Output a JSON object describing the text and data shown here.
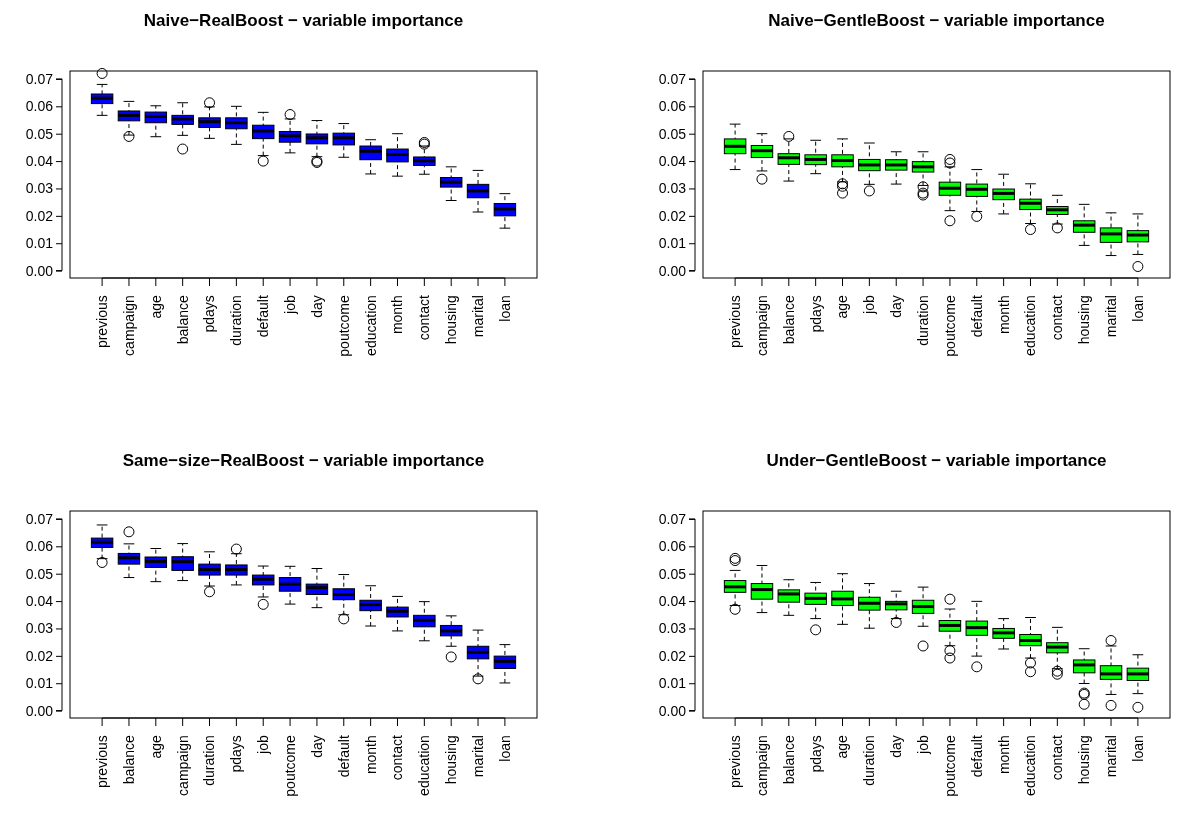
{
  "chart_data": [
    {
      "type": "box",
      "title": "Naive−RealBoost − variable importance",
      "color": "#0000ff",
      "ylim": [
        -0.0027,
        0.0729
      ],
      "yticks": [
        {
          "value": 0,
          "label": "0.00"
        },
        {
          "value": 0.01,
          "label": "0.01"
        },
        {
          "value": 0.02,
          "label": "0.02"
        },
        {
          "value": 0.03,
          "label": "0.03"
        },
        {
          "value": 0.04,
          "label": "0.04"
        },
        {
          "value": 0.05,
          "label": "0.05"
        },
        {
          "value": 0.06,
          "label": "0.06"
        },
        {
          "value": 0.07,
          "label": "0.07"
        }
      ],
      "categories": [
        "previous",
        "campaign",
        "age",
        "balance",
        "pdays",
        "duration",
        "default",
        "job",
        "day",
        "poutcome",
        "education",
        "month",
        "contact",
        "housing",
        "marital",
        "loan"
      ],
      "boxes": [
        {
          "low": 0.0567,
          "q1": 0.061,
          "median": 0.063,
          "q3": 0.0645,
          "high": 0.068,
          "outliers": [
            0.072
          ]
        },
        {
          "low": 0.0495,
          "q1": 0.0547,
          "median": 0.0567,
          "q3": 0.0583,
          "high": 0.0618,
          "outliers": [
            0.049
          ]
        },
        {
          "low": 0.0489,
          "q1": 0.054,
          "median": 0.0563,
          "q3": 0.0579,
          "high": 0.0602
        },
        {
          "low": 0.0494,
          "q1": 0.0534,
          "median": 0.0554,
          "q3": 0.0567,
          "high": 0.0613,
          "outliers": [
            0.0444
          ]
        },
        {
          "low": 0.0483,
          "q1": 0.0523,
          "median": 0.0544,
          "q3": 0.0558,
          "high": 0.0598,
          "outliers": [
            0.0613
          ]
        },
        {
          "low": 0.0461,
          "q1": 0.0518,
          "median": 0.054,
          "q3": 0.0558,
          "high": 0.06
        },
        {
          "low": 0.042,
          "q1": 0.0482,
          "median": 0.051,
          "q3": 0.0531,
          "high": 0.0578,
          "outliers": [
            0.04
          ]
        },
        {
          "low": 0.043,
          "q1": 0.0469,
          "median": 0.0492,
          "q3": 0.0508,
          "high": 0.0554,
          "outliers": [
            0.057
          ]
        },
        {
          "low": 0.0416,
          "q1": 0.0463,
          "median": 0.0485,
          "q3": 0.0499,
          "high": 0.0548,
          "outliers": [
            0.04,
            0.0395
          ]
        },
        {
          "low": 0.0414,
          "q1": 0.0459,
          "median": 0.0485,
          "q3": 0.0502,
          "high": 0.0537
        },
        {
          "low": 0.0353,
          "q1": 0.0405,
          "median": 0.0436,
          "q3": 0.0455,
          "high": 0.0478
        },
        {
          "low": 0.0345,
          "q1": 0.0397,
          "median": 0.0424,
          "q3": 0.0444,
          "high": 0.05
        },
        {
          "low": 0.0352,
          "q1": 0.0384,
          "median": 0.0401,
          "q3": 0.0415,
          "high": 0.0455,
          "outliers": [
            0.0468,
            0.0462
          ]
        },
        {
          "low": 0.0256,
          "q1": 0.0305,
          "median": 0.0323,
          "q3": 0.034,
          "high": 0.0379
        },
        {
          "low": 0.0214,
          "q1": 0.0266,
          "median": 0.0291,
          "q3": 0.0315,
          "high": 0.0366
        },
        {
          "low": 0.0155,
          "q1": 0.02,
          "median": 0.0225,
          "q3": 0.0245,
          "high": 0.0281
        }
      ]
    },
    {
      "type": "box",
      "title": "Naive−GentleBoost − variable importance",
      "color": "#00ff00",
      "ylim": [
        -0.0027,
        0.0729
      ],
      "yticks": [
        {
          "value": 0,
          "label": "0.00"
        },
        {
          "value": 0.01,
          "label": "0.01"
        },
        {
          "value": 0.02,
          "label": "0.02"
        },
        {
          "value": 0.03,
          "label": "0.03"
        },
        {
          "value": 0.04,
          "label": "0.04"
        },
        {
          "value": 0.05,
          "label": "0.05"
        },
        {
          "value": 0.06,
          "label": "0.06"
        },
        {
          "value": 0.07,
          "label": "0.07"
        }
      ],
      "categories": [
        "previous",
        "campaign",
        "balance",
        "pdays",
        "age",
        "job",
        "day",
        "duration",
        "poutcome",
        "default",
        "month",
        "education",
        "contact",
        "housing",
        "marital",
        "loan"
      ],
      "boxes": [
        {
          "low": 0.0369,
          "q1": 0.0427,
          "median": 0.0454,
          "q3": 0.0481,
          "high": 0.0535
        },
        {
          "low": 0.0364,
          "q1": 0.0413,
          "median": 0.0438,
          "q3": 0.0457,
          "high": 0.05,
          "outliers": [
            0.0334
          ]
        },
        {
          "low": 0.0327,
          "q1": 0.0388,
          "median": 0.0412,
          "q3": 0.0427,
          "high": 0.0481,
          "outliers": [
            0.049
          ]
        },
        {
          "low": 0.0354,
          "q1": 0.0387,
          "median": 0.0406,
          "q3": 0.0423,
          "high": 0.0476
        },
        {
          "low": 0.0324,
          "q1": 0.0379,
          "median": 0.0402,
          "q3": 0.0423,
          "high": 0.0481,
          "outliers": [
            0.0317,
            0.0308,
            0.0283
          ]
        },
        {
          "low": 0.0315,
          "q1": 0.0365,
          "median": 0.0386,
          "q3": 0.0406,
          "high": 0.0466,
          "outliers": [
            0.0291
          ]
        },
        {
          "low": 0.0316,
          "q1": 0.0367,
          "median": 0.0386,
          "q3": 0.0405,
          "high": 0.0434
        },
        {
          "low": 0.0311,
          "q1": 0.036,
          "median": 0.0379,
          "q3": 0.0398,
          "high": 0.0434,
          "outliers": [
            0.0306,
            0.0283,
            0.0276
          ]
        },
        {
          "low": 0.0219,
          "q1": 0.0275,
          "median": 0.0301,
          "q3": 0.0323,
          "high": 0.0379,
          "outliers": [
            0.0406,
            0.0393,
            0.0182
          ]
        },
        {
          "low": 0.0216,
          "q1": 0.0271,
          "median": 0.0297,
          "q3": 0.0316,
          "high": 0.0369,
          "outliers": [
            0.0198
          ]
        },
        {
          "low": 0.0207,
          "q1": 0.0259,
          "median": 0.0282,
          "q3": 0.0298,
          "high": 0.0352
        },
        {
          "low": 0.0172,
          "q1": 0.0223,
          "median": 0.0246,
          "q3": 0.0261,
          "high": 0.0317,
          "outliers": [
            0.015
          ]
        },
        {
          "low": 0.017,
          "q1": 0.0205,
          "median": 0.0222,
          "q3": 0.0234,
          "high": 0.0275,
          "outliers": [
            0.0156
          ]
        },
        {
          "low": 0.0092,
          "q1": 0.014,
          "median": 0.0166,
          "q3": 0.0182,
          "high": 0.0242
        },
        {
          "low": 0.0055,
          "q1": 0.0103,
          "median": 0.0134,
          "q3": 0.0156,
          "high": 0.0211
        },
        {
          "low": 0.0059,
          "q1": 0.0105,
          "median": 0.013,
          "q3": 0.0146,
          "high": 0.0207,
          "outliers": [
            0.0015
          ]
        }
      ]
    },
    {
      "type": "box",
      "title": "Same−size−RealBoost −  variable importance",
      "color": "#0000ff",
      "ylim": [
        -0.0027,
        0.0729
      ],
      "yticks": [
        {
          "value": 0,
          "label": "0.00"
        },
        {
          "value": 0.01,
          "label": "0.01"
        },
        {
          "value": 0.02,
          "label": "0.02"
        },
        {
          "value": 0.03,
          "label": "0.03"
        },
        {
          "value": 0.04,
          "label": "0.04"
        },
        {
          "value": 0.05,
          "label": "0.05"
        },
        {
          "value": 0.06,
          "label": "0.06"
        },
        {
          "value": 0.07,
          "label": "0.07"
        }
      ],
      "categories": [
        "previous",
        "balance",
        "age",
        "campaign",
        "duration",
        "pdays",
        "job",
        "poutcome",
        "day",
        "default",
        "month",
        "contact",
        "education",
        "housing",
        "marital",
        "loan"
      ],
      "boxes": [
        {
          "low": 0.0555,
          "q1": 0.0596,
          "median": 0.0615,
          "q3": 0.063,
          "high": 0.0678,
          "outliers": [
            0.0541
          ]
        },
        {
          "low": 0.0486,
          "q1": 0.0535,
          "median": 0.0558,
          "q3": 0.0574,
          "high": 0.0609,
          "outliers": [
            0.0653
          ]
        },
        {
          "low": 0.0471,
          "q1": 0.0523,
          "median": 0.0545,
          "q3": 0.0561,
          "high": 0.0592
        },
        {
          "low": 0.0475,
          "q1": 0.0512,
          "median": 0.0544,
          "q3": 0.0562,
          "high": 0.061
        },
        {
          "low": 0.0455,
          "q1": 0.0495,
          "median": 0.0515,
          "q3": 0.0535,
          "high": 0.058,
          "outliers": [
            0.0434
          ]
        },
        {
          "low": 0.0459,
          "q1": 0.0495,
          "median": 0.0515,
          "q3": 0.0532,
          "high": 0.0573,
          "outliers": [
            0.059
          ]
        },
        {
          "low": 0.0415,
          "q1": 0.0459,
          "median": 0.048,
          "q3": 0.0495,
          "high": 0.0528,
          "outliers": [
            0.0388
          ]
        },
        {
          "low": 0.0389,
          "q1": 0.0436,
          "median": 0.0462,
          "q3": 0.0486,
          "high": 0.0527
        },
        {
          "low": 0.0376,
          "q1": 0.0424,
          "median": 0.0449,
          "q3": 0.0462,
          "high": 0.0519
        },
        {
          "low": 0.035,
          "q1": 0.0405,
          "median": 0.0424,
          "q3": 0.0445,
          "high": 0.0497,
          "outliers": [
            0.0335
          ]
        },
        {
          "low": 0.0309,
          "q1": 0.0365,
          "median": 0.0387,
          "q3": 0.0403,
          "high": 0.0456
        },
        {
          "low": 0.0291,
          "q1": 0.0342,
          "median": 0.0363,
          "q3": 0.0378,
          "high": 0.0417
        },
        {
          "low": 0.0255,
          "q1": 0.0306,
          "median": 0.033,
          "q3": 0.0348,
          "high": 0.0398
        },
        {
          "low": 0.0235,
          "q1": 0.0273,
          "median": 0.0291,
          "q3": 0.0311,
          "high": 0.0346,
          "outliers": [
            0.0196
          ]
        },
        {
          "low": 0.0126,
          "q1": 0.0189,
          "median": 0.0213,
          "q3": 0.0235,
          "high": 0.0294,
          "outliers": [
            0.0116
          ]
        },
        {
          "low": 0.0101,
          "q1": 0.0154,
          "median": 0.018,
          "q3": 0.0199,
          "high": 0.0241
        }
      ]
    },
    {
      "type": "box",
      "title": "Under−GentleBoost −  variable importance",
      "color": "#00ff00",
      "ylim": [
        -0.0027,
        0.0729
      ],
      "yticks": [
        {
          "value": 0,
          "label": "0.00"
        },
        {
          "value": 0.01,
          "label": "0.01"
        },
        {
          "value": 0.02,
          "label": "0.02"
        },
        {
          "value": 0.03,
          "label": "0.03"
        },
        {
          "value": 0.04,
          "label": "0.04"
        },
        {
          "value": 0.05,
          "label": "0.05"
        },
        {
          "value": 0.06,
          "label": "0.06"
        },
        {
          "value": 0.07,
          "label": "0.07"
        }
      ],
      "categories": [
        "previous",
        "campaign",
        "balance",
        "pdays",
        "age",
        "duration",
        "day",
        "job",
        "poutcome",
        "default",
        "month",
        "education",
        "contact",
        "housing",
        "marital",
        "loan"
      ],
      "boxes": [
        {
          "low": 0.0384,
          "q1": 0.0432,
          "median": 0.0452,
          "q3": 0.0475,
          "high": 0.0512,
          "outliers": [
            0.0556,
            0.0548,
            0.037
          ]
        },
        {
          "low": 0.0358,
          "q1": 0.0407,
          "median": 0.0442,
          "q3": 0.0464,
          "high": 0.053
        },
        {
          "low": 0.0348,
          "q1": 0.0396,
          "median": 0.0426,
          "q3": 0.0441,
          "high": 0.0478
        },
        {
          "low": 0.0336,
          "q1": 0.0388,
          "median": 0.041,
          "q3": 0.0429,
          "high": 0.0468,
          "outliers": [
            0.0295
          ]
        },
        {
          "low": 0.0315,
          "q1": 0.0384,
          "median": 0.0408,
          "q3": 0.0436,
          "high": 0.05
        },
        {
          "low": 0.0301,
          "q1": 0.0367,
          "median": 0.0392,
          "q3": 0.0414,
          "high": 0.0464
        },
        {
          "low": 0.0336,
          "q1": 0.0368,
          "median": 0.039,
          "q3": 0.0399,
          "high": 0.0436,
          "outliers": [
            0.0322
          ]
        },
        {
          "low": 0.0308,
          "q1": 0.0355,
          "median": 0.038,
          "q3": 0.0403,
          "high": 0.0451,
          "outliers": [
            0.0236
          ]
        },
        {
          "low": 0.0237,
          "q1": 0.029,
          "median": 0.0311,
          "q3": 0.0329,
          "high": 0.0371,
          "outliers": [
            0.0407,
            0.0219,
            0.0192
          ]
        },
        {
          "low": 0.0199,
          "q1": 0.0275,
          "median": 0.0303,
          "q3": 0.0327,
          "high": 0.0399,
          "outliers": [
            0.016
          ]
        },
        {
          "low": 0.0225,
          "q1": 0.0264,
          "median": 0.0284,
          "q3": 0.03,
          "high": 0.0336
        },
        {
          "low": 0.0192,
          "q1": 0.0237,
          "median": 0.0256,
          "q3": 0.0278,
          "high": 0.034,
          "outliers": [
            0.0174,
            0.0142
          ]
        },
        {
          "low": 0.0153,
          "q1": 0.0211,
          "median": 0.0232,
          "q3": 0.0248,
          "high": 0.0304,
          "outliers": [
            0.0144,
            0.0133
          ]
        },
        {
          "low": 0.0099,
          "q1": 0.0138,
          "median": 0.0167,
          "q3": 0.0185,
          "high": 0.0226,
          "outliers": [
            0.0064,
            0.0059,
            0.0023
          ]
        },
        {
          "low": 0.0059,
          "q1": 0.0114,
          "median": 0.0134,
          "q3": 0.0164,
          "high": 0.0236,
          "outliers": [
            0.0256,
            0.0019
          ]
        },
        {
          "low": 0.0062,
          "q1": 0.011,
          "median": 0.0134,
          "q3": 0.0155,
          "high": 0.0204,
          "outliers": [
            0.0012
          ]
        }
      ]
    }
  ]
}
